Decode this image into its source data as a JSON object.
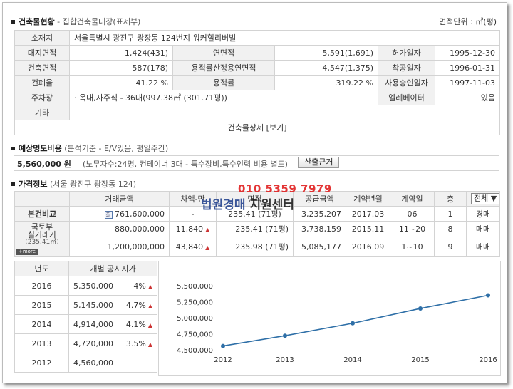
{
  "section1": {
    "title": "건축물현황",
    "subtitle": " - 집합건축물대장(표제부)",
    "unit_label": "면적단위 : ㎡(평)"
  },
  "building": {
    "address_label": "소재지",
    "address": "서울특별시 광진구 광장동 124번지 워커힐리버빌",
    "rows": [
      {
        "l1": "대지면적",
        "v1": "1,424(431)",
        "l2": "연면적",
        "v2": "5,591(1,691)",
        "l3": "허가일자",
        "v3": "1995-12-30"
      },
      {
        "l1": "건축면적",
        "v1": "587(178)",
        "l2": "용적률산정용연면적",
        "v2": "4,547(1,375)",
        "l3": "착공일자",
        "v3": "1996-01-31"
      },
      {
        "l1": "건폐율",
        "v1": "41.22 %",
        "l2": "용적률",
        "v2": "319.22 %",
        "l3": "사용승인일자",
        "v3": "1997-11-03"
      }
    ],
    "parking_label": "주차장",
    "parking": "· 옥내,자주식 - 36대(997.38㎡ (301.71평))",
    "elevator_label": "엘레베이터",
    "elevator": "있음",
    "etc_label": "기타",
    "etc": "",
    "detail_label": "건축물상세",
    "detail_link": "[보기]"
  },
  "section2": {
    "title": "예상명도비용",
    "subtitle": " (분석기준 - E/V있음, 평일주간)",
    "amount": "5,560,000 원",
    "note": "(노무자수:24명, 컨테이너 3대 - 특수장비,특수인력 비용 별도)",
    "button": "산출근거"
  },
  "section3": {
    "title": "가격정보",
    "subtitle": " (서울 광진구 광장동 124)",
    "headers": [
      "",
      "거래금액",
      "차액-만",
      "면적",
      "공급금액",
      "계약년월",
      "계약일",
      "층",
      "전체 ▼"
    ],
    "compare_label": "본건비교",
    "compare_badge": "최",
    "compare": [
      "761,600,000",
      "-",
      "235.41",
      "(71평)",
      "3,235,207",
      "2017.03",
      "06",
      "1",
      "경매"
    ],
    "molit_label1": "국토부",
    "molit_label2": "실거래가",
    "molit_area": "(235.41㎡)",
    "more": "+more",
    "trades": [
      {
        "amount": "880,000,000",
        "diff": "11,840",
        "area": "235.41",
        "pyeong": "(71평)",
        "supply": "3,738,159",
        "ym": "2015.11",
        "day": "11~20",
        "floor": "8",
        "type": "매매"
      },
      {
        "amount": "1,200,000,000",
        "diff": "43,840",
        "area": "235.98",
        "pyeong": "(71평)",
        "supply": "5,085,177",
        "ym": "2016.09",
        "day": "1~10",
        "floor": "9",
        "type": "매매"
      }
    ]
  },
  "land_price": {
    "headers": [
      "년도",
      "개별 공시지가"
    ],
    "rows": [
      {
        "year": "2016",
        "price": "5,350,000",
        "pct": "4%"
      },
      {
        "year": "2015",
        "price": "5,145,000",
        "pct": "4.7%"
      },
      {
        "year": "2014",
        "price": "4,914,000",
        "pct": "4.1%"
      },
      {
        "year": "2013",
        "price": "4,720,000",
        "pct": "3.5%"
      },
      {
        "year": "2012",
        "price": "4,560,000",
        "pct": ""
      }
    ]
  },
  "chart_data": {
    "type": "line",
    "x": [
      "2012",
      "2013",
      "2014",
      "2015",
      "2016"
    ],
    "series": [
      {
        "values": [
          4560000,
          4720000,
          4914000,
          5145000,
          5350000
        ]
      }
    ],
    "yticks": [
      "5,500,000",
      "5,250,000",
      "5,000,000",
      "4,750,000",
      "4,500,000"
    ],
    "ylim": [
      4500000,
      5500000
    ],
    "color": "#2e6fa7",
    "grid": false
  },
  "watermark": {
    "phone": "010 5359 7979",
    "name_a": "법원경매",
    "name_b": " 지원센터"
  },
  "colors": {
    "accent_up": "#cc3333",
    "header_bg": "#f1f1f1"
  }
}
